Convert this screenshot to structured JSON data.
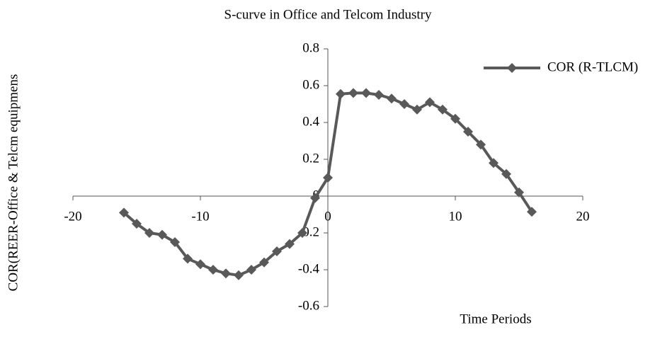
{
  "chart_data": {
    "type": "line",
    "title": "S-curve in Office and Telcom Industry",
    "x_label": "Time Periods",
    "y_label": "COR(REER-Office & Telcm equipmens",
    "x": [
      -16,
      -15,
      -14,
      -13,
      -12,
      -11,
      -10,
      -9,
      -8,
      -7,
      -6,
      -5,
      -4,
      -3,
      -2,
      -1,
      0,
      1,
      2,
      3,
      4,
      5,
      6,
      7,
      8,
      9,
      10,
      11,
      12,
      13,
      14,
      15,
      16
    ],
    "series": [
      {
        "name": "COR (R-TLCM)",
        "color": "#595959",
        "values": [
          -0.09,
          -0.15,
          -0.2,
          -0.21,
          -0.25,
          -0.34,
          -0.37,
          -0.4,
          -0.42,
          -0.43,
          -0.4,
          -0.36,
          -0.3,
          -0.26,
          -0.2,
          -0.01,
          0.1,
          0.555,
          0.56,
          0.56,
          0.55,
          0.53,
          0.5,
          0.47,
          0.51,
          0.47,
          0.42,
          0.35,
          0.28,
          0.18,
          0.12,
          0.02,
          -0.085
        ]
      }
    ],
    "xlim": [
      -20,
      20
    ],
    "xticks": [
      -20,
      -10,
      0,
      10,
      20
    ],
    "ylim": [
      -0.6,
      0.8
    ],
    "yticks": [
      -0.6,
      -0.4,
      -0.2,
      0,
      0.2,
      0.4,
      0.6,
      0.8
    ],
    "legend": "right"
  }
}
